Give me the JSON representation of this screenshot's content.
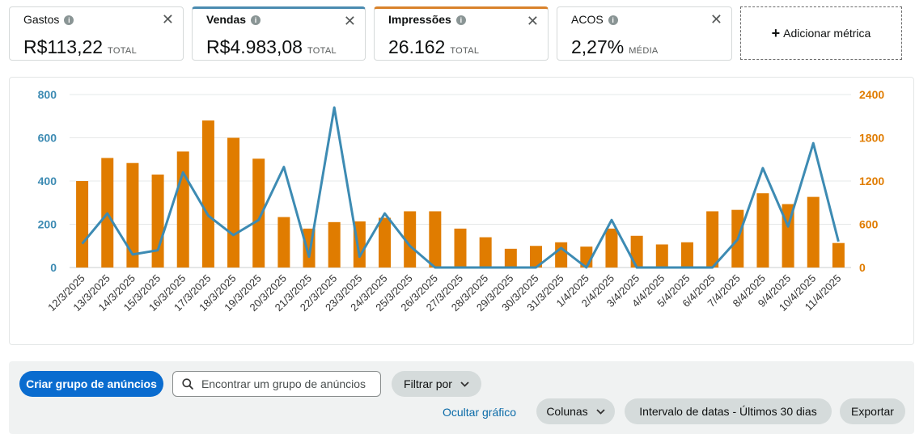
{
  "metrics": [
    {
      "title": "Gastos",
      "value": "R$113,22",
      "suffix": "TOTAL",
      "info_icon": "info-icon",
      "close": "✕"
    },
    {
      "title": "Vendas",
      "value": "R$4.983,08",
      "suffix": "TOTAL",
      "info_icon": "info-icon",
      "close": "✕",
      "accent": "#4a8bb0"
    },
    {
      "title": "Impressões",
      "value": "26.162",
      "suffix": "TOTAL",
      "info_icon": "info-icon",
      "close": "✕",
      "accent": "#d9822b"
    },
    {
      "title": "ACOS",
      "value": "2,27%",
      "suffix": "MÉDIA",
      "info_icon": "info-icon",
      "close": "✕"
    }
  ],
  "add_metric": {
    "plus": "+",
    "label": "Adicionar métrica"
  },
  "chart_data": {
    "type": "bar",
    "categories": [
      "12/3/2025",
      "13/3/2025",
      "14/3/2025",
      "15/3/2025",
      "16/3/2025",
      "17/3/2025",
      "18/3/2025",
      "19/3/2025",
      "20/3/2025",
      "21/3/2025",
      "22/3/2025",
      "23/3/2025",
      "24/3/2025",
      "25/3/2025",
      "26/3/2025",
      "27/3/2025",
      "28/3/2025",
      "29/3/2025",
      "30/3/2025",
      "31/3/2025",
      "1/4/2025",
      "2/4/2025",
      "3/4/2025",
      "4/4/2025",
      "5/4/2025",
      "6/4/2025",
      "7/4/2025",
      "8/4/2025",
      "9/4/2025",
      "10/4/2025",
      "11/4/2025"
    ],
    "series": [
      {
        "type": "bar",
        "axis": "right",
        "color": "#e07c00",
        "values": [
          1200,
          1520,
          1450,
          1290,
          1610,
          2040,
          1800,
          1510,
          700,
          540,
          630,
          640,
          690,
          780,
          780,
          540,
          420,
          260,
          300,
          350,
          290,
          540,
          440,
          320,
          350,
          780,
          800,
          1030,
          880,
          980,
          340
        ]
      },
      {
        "type": "line",
        "axis": "left",
        "color": "#3d8bb3",
        "values": [
          110,
          250,
          60,
          80,
          440,
          240,
          150,
          220,
          465,
          50,
          740,
          50,
          250,
          100,
          0,
          0,
          0,
          0,
          0,
          90,
          0,
          220,
          0,
          0,
          0,
          0,
          130,
          460,
          190,
          575,
          120
        ]
      }
    ],
    "left_axis": {
      "ylim": [
        0,
        800
      ],
      "ticks": [
        "0",
        "200",
        "400",
        "600",
        "800"
      ],
      "color": "#3d8bb3"
    },
    "right_axis": {
      "ylim": [
        0,
        2400
      ],
      "ticks": [
        "0",
        "600",
        "1200",
        "1800",
        "2400"
      ],
      "color": "#e07c00"
    },
    "grid": true
  },
  "toolbar": {
    "create_button": "Criar grupo de anúncios",
    "search_placeholder": "Encontrar um grupo de anúncios",
    "filter_button": "Filtrar por",
    "hide_chart_link": "Ocultar gráfico",
    "columns_button": "Colunas",
    "date_range_button": "Intervalo de datas - Últimos 30 dias",
    "export_button": "Exportar"
  }
}
